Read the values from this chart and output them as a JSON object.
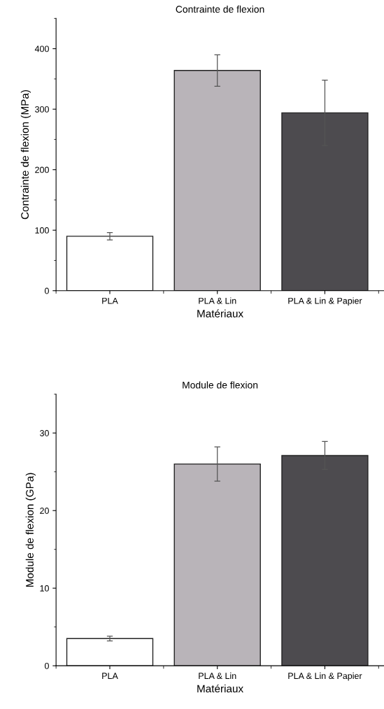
{
  "chart_data": [
    {
      "type": "bar",
      "title": "Contrainte de flexion",
      "xlabel": "Matériaux",
      "ylabel": "Contrainte de flexion (MPa)",
      "categories": [
        "PLA",
        "PLA & Lin",
        "PLA & Lin & Papier"
      ],
      "values": [
        90,
        364,
        294
      ],
      "errors": [
        6,
        26,
        54
      ],
      "colors": [
        "#ffffff",
        "#b9b4b9",
        "#4d4b4f"
      ],
      "ylim": [
        0,
        450
      ],
      "yticks": [
        0,
        100,
        200,
        300,
        400
      ],
      "grid": false,
      "legend": false
    },
    {
      "type": "bar",
      "title": "Module de flexion",
      "xlabel": "Matériaux",
      "ylabel": "Module de flexion (GPa)",
      "categories": [
        "PLA",
        "PLA & Lin",
        "PLA & Lin & Papier"
      ],
      "values": [
        3.5,
        26,
        27.1
      ],
      "errors": [
        0.3,
        2.2,
        1.8
      ],
      "colors": [
        "#ffffff",
        "#b9b4b9",
        "#4d4b4f"
      ],
      "ylim": [
        0,
        35
      ],
      "yticks": [
        0,
        10,
        20,
        30
      ],
      "grid": false,
      "legend": false
    }
  ]
}
